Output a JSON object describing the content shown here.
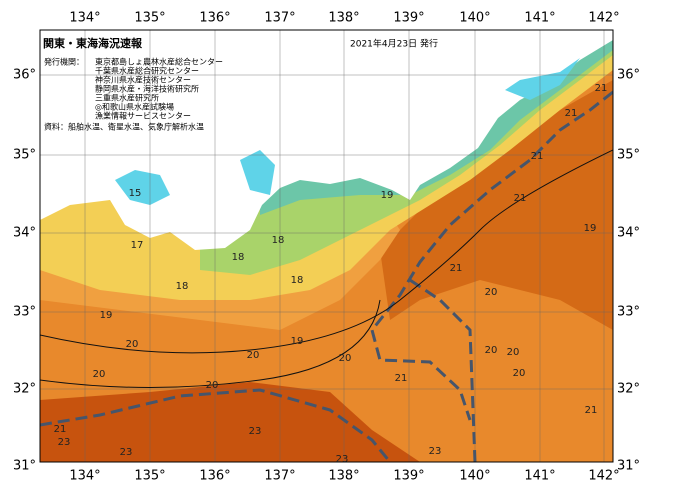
{
  "header": {
    "title": "関東・東海海況速報",
    "date": "2021年4月23日 発行"
  },
  "issuer": {
    "label": "発行機関：",
    "lines": [
      "東京都島しょ農林水産総合センター",
      "千葉県水産総合研究センター",
      "神奈川県水産技術センター",
      "静岡県水産・海洋技術研究所",
      "三重県水産研究所",
      "◎和歌山県水産試験場",
      "漁業情報サービスセンター"
    ]
  },
  "source": "資料：船舶水温、衛星水温、気象庁解析水温",
  "axes": {
    "lon": [
      "134°",
      "135°",
      "136°",
      "137°",
      "138°",
      "139°",
      "140°",
      "141°",
      "142°"
    ],
    "lat": [
      "36°",
      "35°",
      "34°",
      "33°",
      "32°",
      "31°"
    ]
  },
  "isotherm_labels": [
    "15",
    "17",
    "18",
    "18",
    "18",
    "18",
    "19",
    "19",
    "19",
    "19",
    "20",
    "20",
    "20",
    "20",
    "20",
    "20",
    "20",
    "20",
    "20",
    "21",
    "21",
    "21",
    "21",
    "21",
    "21",
    "21",
    "21",
    "23",
    "23",
    "23",
    "23",
    "23"
  ]
}
